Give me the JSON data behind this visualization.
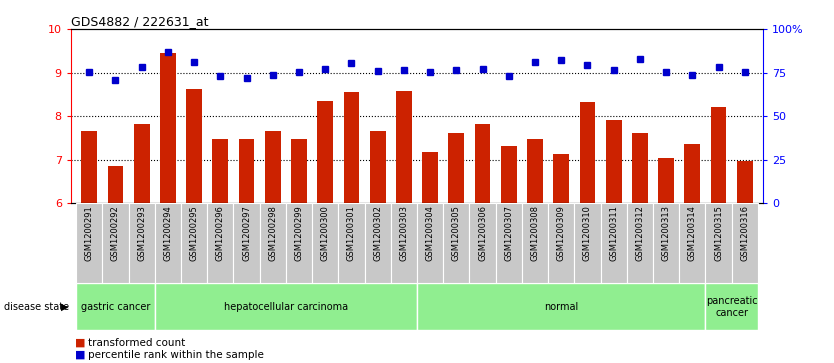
{
  "title": "GDS4882 / 222631_at",
  "samples": [
    "GSM1200291",
    "GSM1200292",
    "GSM1200293",
    "GSM1200294",
    "GSM1200295",
    "GSM1200296",
    "GSM1200297",
    "GSM1200298",
    "GSM1200299",
    "GSM1200300",
    "GSM1200301",
    "GSM1200302",
    "GSM1200303",
    "GSM1200304",
    "GSM1200305",
    "GSM1200306",
    "GSM1200307",
    "GSM1200308",
    "GSM1200309",
    "GSM1200310",
    "GSM1200311",
    "GSM1200312",
    "GSM1200313",
    "GSM1200314",
    "GSM1200315",
    "GSM1200316"
  ],
  "bar_values": [
    7.67,
    6.85,
    7.82,
    9.45,
    8.62,
    7.47,
    7.47,
    7.67,
    7.47,
    8.35,
    8.55,
    7.67,
    8.58,
    7.17,
    7.62,
    7.82,
    7.32,
    7.47,
    7.12,
    8.32,
    7.92,
    7.62,
    7.05,
    7.35,
    8.22,
    6.98
  ],
  "percentile_values": [
    9.02,
    8.82,
    9.12,
    9.48,
    9.25,
    8.92,
    8.88,
    8.95,
    9.02,
    9.08,
    9.22,
    9.04,
    9.05,
    9.02,
    9.05,
    9.08,
    8.92,
    9.25,
    9.28,
    9.18,
    9.05,
    9.32,
    9.02,
    8.95,
    9.12,
    9.02
  ],
  "ylim_left": [
    6,
    10
  ],
  "ylim_right": [
    0,
    100
  ],
  "yticks_left": [
    6,
    7,
    8,
    9,
    10
  ],
  "yticks_right": [
    0,
    25,
    50,
    75,
    100
  ],
  "bar_color": "#CC2200",
  "dot_color": "#0000CC",
  "disease_groups": [
    {
      "label": "gastric cancer",
      "start": 0,
      "end": 3
    },
    {
      "label": "hepatocellular carcinoma",
      "start": 3,
      "end": 13
    },
    {
      "label": "normal",
      "start": 13,
      "end": 24
    },
    {
      "label": "pancreatic\ncancer",
      "start": 24,
      "end": 26
    }
  ],
  "group_color": "#90EE90",
  "legend_bar_label": "transformed count",
  "legend_dot_label": "percentile rank within the sample",
  "disease_state_label": "disease state"
}
